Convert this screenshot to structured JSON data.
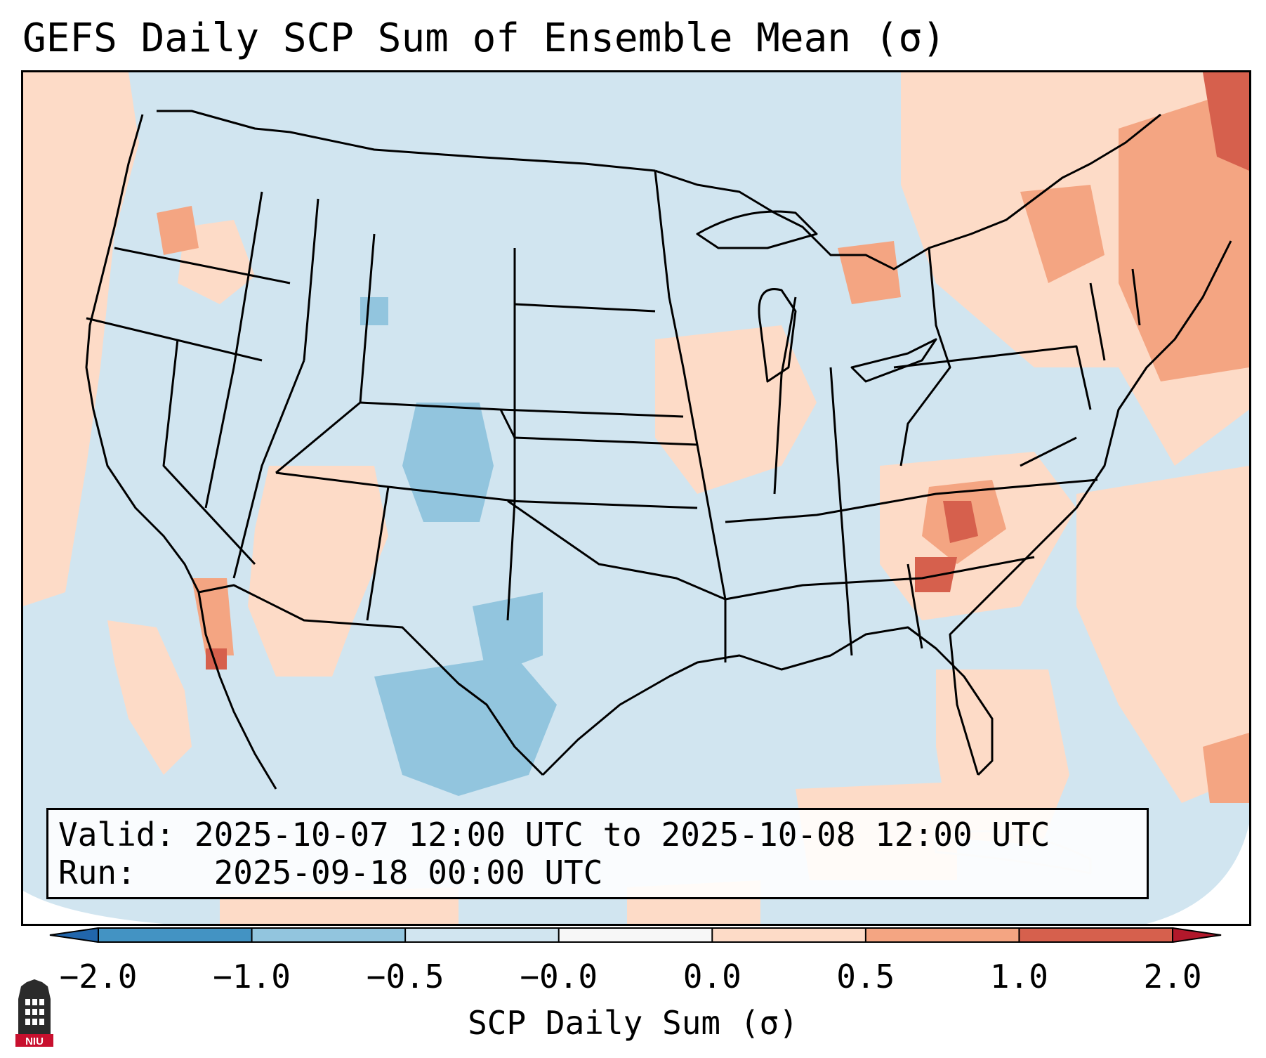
{
  "title": "GEFS Daily SCP Sum of Ensemble Mean (σ)",
  "info": {
    "valid_label": "Valid:",
    "valid_value": "2025-10-07 12:00 UTC to 2025-10-08 12:00 UTC",
    "run_label": "Run:",
    "run_value": "2025-09-18 00:00 UTC"
  },
  "colorbar": {
    "label": "SCP Daily Sum (σ)",
    "ticks": [
      "−2.0",
      "−1.0",
      "−0.5",
      "−0.0",
      "0.0",
      "0.5",
      "1.0",
      "2.0"
    ],
    "colors": [
      "#4393c3",
      "#92c5de",
      "#d1e5f0",
      "#f7f7f7",
      "#fddbc7",
      "#f4a582",
      "#d6604d"
    ],
    "extend_low": "#2166ac",
    "extend_high": "#b2182b"
  },
  "map": {
    "ocean_fill": "#d1e5f0",
    "region": "Contiguous United States"
  },
  "logo": {
    "text": "NIU",
    "color": "#c8102e"
  }
}
